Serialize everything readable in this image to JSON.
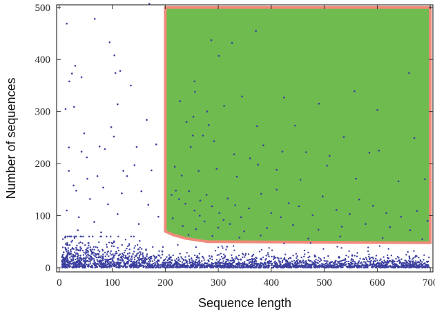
{
  "chart_data": {
    "type": "scatter",
    "title": "",
    "xlabel": "Sequence length",
    "ylabel": "Number of sequences",
    "xlim": [
      -5,
      705
    ],
    "ylim": [
      -8,
      505
    ],
    "x_ticks": [
      0,
      100,
      200,
      300,
      400,
      500,
      600,
      700
    ],
    "y_ticks": [
      0,
      100,
      200,
      300,
      400,
      500
    ],
    "grid": false,
    "legend": "none",
    "colors": {
      "points": "#3b3f9e",
      "region_fill": "#6fbb4f",
      "region_edge": "#f08a7a",
      "frame": "#333333"
    },
    "regions": [
      {
        "name": "selected-region",
        "fill": "#6fbb4f",
        "boundary": [
          [
            200,
            500
          ],
          [
            200,
            70
          ],
          [
            215,
            63
          ],
          [
            240,
            56
          ],
          [
            280,
            50
          ],
          [
            700,
            48
          ],
          [
            700,
            500
          ]
        ]
      }
    ],
    "points": [
      [
        14,
        469
      ],
      [
        67,
        478
      ],
      [
        95,
        433
      ],
      [
        104,
        408
      ],
      [
        170,
        507
      ],
      [
        165,
        284
      ],
      [
        24,
        373
      ],
      [
        30,
        388
      ],
      [
        42,
        366
      ],
      [
        12,
        305
      ],
      [
        28,
        309
      ],
      [
        19,
        358
      ],
      [
        115,
        378
      ],
      [
        106,
        374
      ],
      [
        110,
        314
      ],
      [
        135,
        350
      ],
      [
        76,
        233
      ],
      [
        86,
        228
      ],
      [
        103,
        252
      ],
      [
        98,
        270
      ],
      [
        42,
        223
      ],
      [
        52,
        212
      ],
      [
        27,
        158
      ],
      [
        18,
        186
      ],
      [
        32,
        148
      ],
      [
        14,
        110
      ],
      [
        37,
        97
      ],
      [
        58,
        132
      ],
      [
        72,
        176
      ],
      [
        92,
        122
      ],
      [
        118,
        143
      ],
      [
        128,
        176
      ],
      [
        142,
        197
      ],
      [
        155,
        147
      ],
      [
        168,
        121
      ],
      [
        187,
        98
      ],
      [
        146,
        232
      ],
      [
        121,
        186
      ],
      [
        150,
        84
      ],
      [
        174,
        187
      ],
      [
        183,
        237
      ],
      [
        110,
        103
      ],
      [
        83,
        154
      ],
      [
        53,
        171
      ],
      [
        18,
        231
      ],
      [
        47,
        258
      ],
      [
        79,
        68
      ],
      [
        66,
        88
      ],
      [
        35,
        72
      ],
      [
        11,
        58
      ],
      [
        371,
        455
      ],
      [
        287,
        437
      ],
      [
        326,
        432
      ],
      [
        301,
        407
      ],
      [
        660,
        374
      ],
      [
        557,
        339
      ],
      [
        255,
        358
      ],
      [
        256,
        338
      ],
      [
        345,
        329
      ],
      [
        424,
        327
      ],
      [
        228,
        320
      ],
      [
        311,
        311
      ],
      [
        279,
        300
      ],
      [
        490,
        315
      ],
      [
        600,
        303
      ],
      [
        253,
        290
      ],
      [
        240,
        280
      ],
      [
        282,
        274
      ],
      [
        373,
        272
      ],
      [
        445,
        273
      ],
      [
        271,
        254
      ],
      [
        252,
        254
      ],
      [
        385,
        235
      ],
      [
        421,
        223
      ],
      [
        466,
        222
      ],
      [
        510,
        215
      ],
      [
        537,
        251
      ],
      [
        585,
        221
      ],
      [
        603,
        225
      ],
      [
        670,
        249
      ],
      [
        292,
        243
      ],
      [
        330,
        218
      ],
      [
        360,
        210
      ],
      [
        248,
        232
      ],
      [
        218,
        194
      ],
      [
        231,
        177
      ],
      [
        263,
        186
      ],
      [
        297,
        190
      ],
      [
        335,
        175
      ],
      [
        375,
        198
      ],
      [
        410,
        188
      ],
      [
        455,
        169
      ],
      [
        505,
        196
      ],
      [
        560,
        171
      ],
      [
        640,
        166
      ],
      [
        690,
        170
      ],
      [
        212,
        140
      ],
      [
        226,
        132
      ],
      [
        238,
        123
      ],
      [
        245,
        147
      ],
      [
        255,
        110
      ],
      [
        266,
        129
      ],
      [
        278,
        140
      ],
      [
        288,
        118
      ],
      [
        302,
        105
      ],
      [
        318,
        133
      ],
      [
        332,
        120
      ],
      [
        343,
        97
      ],
      [
        358,
        114
      ],
      [
        381,
        142
      ],
      [
        400,
        105
      ],
      [
        418,
        97
      ],
      [
        433,
        124
      ],
      [
        452,
        118
      ],
      [
        478,
        101
      ],
      [
        497,
        137
      ],
      [
        523,
        111
      ],
      [
        548,
        103
      ],
      [
        566,
        131
      ],
      [
        592,
        119
      ],
      [
        617,
        105
      ],
      [
        645,
        98
      ],
      [
        675,
        109
      ],
      [
        695,
        90
      ],
      [
        214,
        95
      ],
      [
        233,
        80
      ],
      [
        258,
        74
      ],
      [
        274,
        89
      ],
      [
        300,
        77
      ],
      [
        322,
        84
      ],
      [
        349,
        70
      ],
      [
        392,
        76
      ],
      [
        441,
        82
      ],
      [
        489,
        73
      ],
      [
        533,
        79
      ],
      [
        578,
        84
      ],
      [
        624,
        78
      ],
      [
        662,
        72
      ],
      [
        244,
        63
      ],
      [
        289,
        61
      ],
      [
        340,
        58
      ],
      [
        380,
        62
      ],
      [
        470,
        56
      ],
      [
        530,
        60
      ],
      [
        610,
        57
      ],
      [
        685,
        55
      ],
      [
        220,
        148
      ],
      [
        265,
        100
      ],
      [
        310,
        92
      ],
      [
        410,
        150
      ]
    ]
  }
}
